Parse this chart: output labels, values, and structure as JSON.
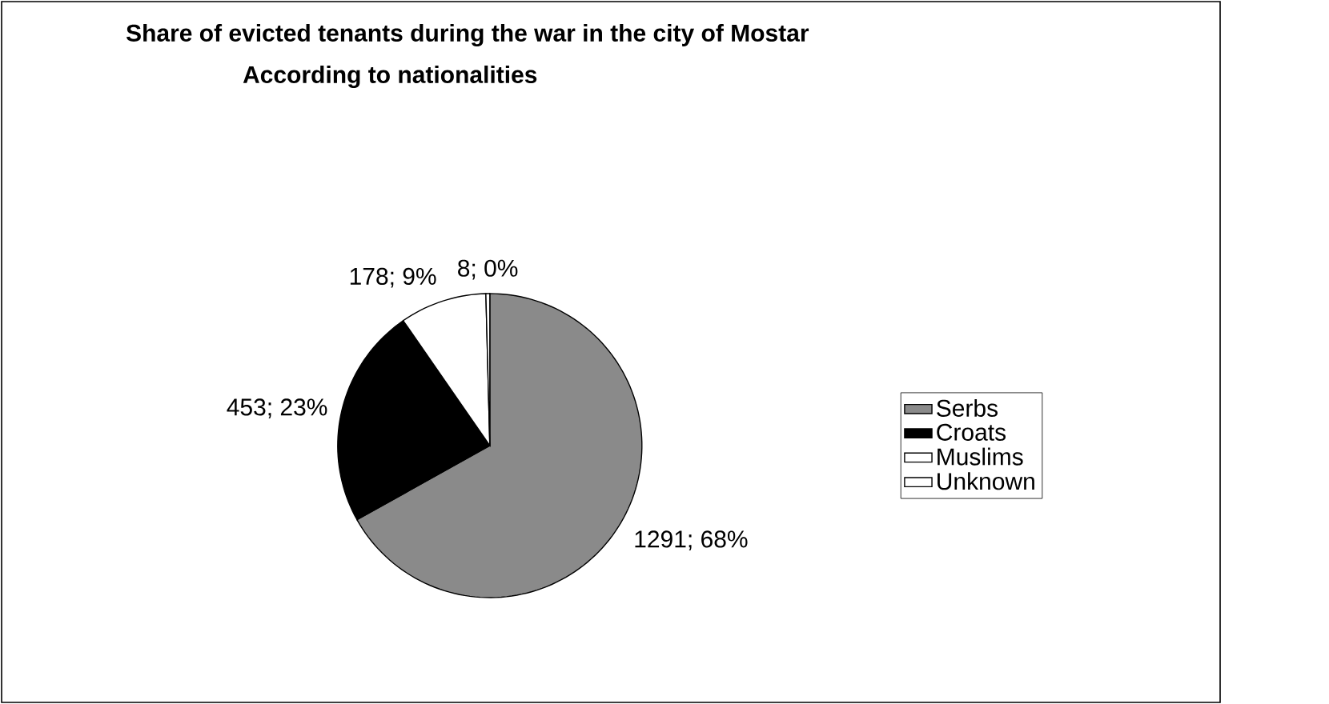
{
  "chart_data": {
    "type": "pie",
    "title": "Share of evicted tenants during the war in the city of Mostar",
    "subtitle": "According to nationalities",
    "categories": [
      "Serbs",
      "Croats",
      "Muslims",
      "Unknown"
    ],
    "values": [
      1291,
      453,
      178,
      8
    ],
    "colors": [
      "#8a8a8a",
      "#000000",
      "#ffffff",
      "#ffffff"
    ],
    "value_labels": [
      "1291; 68%",
      "453; 23%",
      "178; 9%",
      "8; 0%"
    ],
    "legend": "right"
  }
}
